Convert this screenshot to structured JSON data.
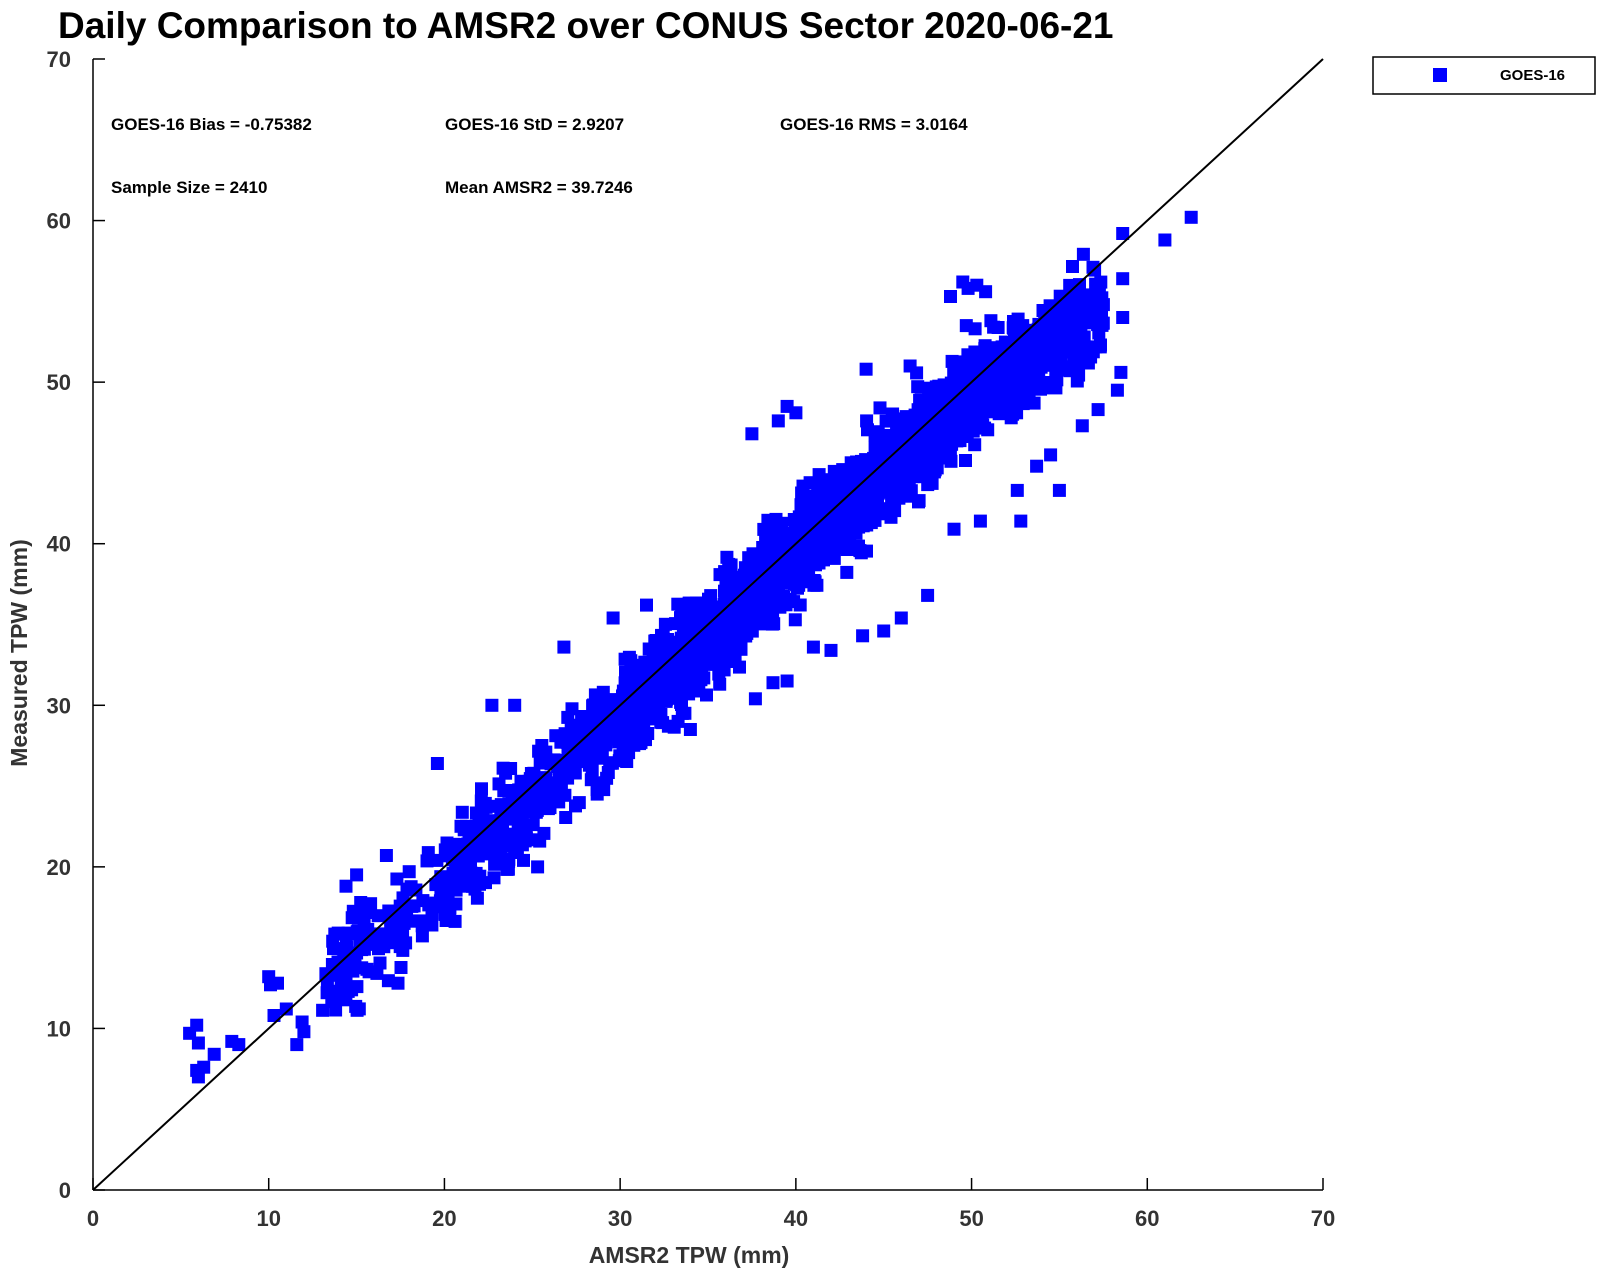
{
  "chart_data": {
    "type": "scatter",
    "title": "Daily Comparison to AMSR2 over CONUS Sector 2020-06-21",
    "xlabel": "AMSR2 TPW (mm)",
    "ylabel": "Measured TPW (mm)",
    "xlim": [
      0,
      70
    ],
    "ylim": [
      0,
      70
    ],
    "xticks": [
      "0",
      "10",
      "20",
      "30",
      "40",
      "50",
      "60",
      "70"
    ],
    "yticks": [
      "0",
      "10",
      "20",
      "30",
      "40",
      "50",
      "60",
      "70"
    ],
    "grid": false,
    "legend_position": "top-right",
    "reference_line": {
      "name": "1:1",
      "x": [
        0,
        70
      ],
      "y": [
        0,
        70
      ],
      "color": "#000000"
    },
    "series": [
      {
        "name": "GOES-16",
        "color": "#0000ff",
        "marker": "square",
        "sample_size": 2410,
        "outliers": [
          [
            5.5,
            9.7
          ],
          [
            5.9,
            10.2
          ],
          [
            6.0,
            9.1
          ],
          [
            5.9,
            7.4
          ],
          [
            6.0,
            7.0
          ],
          [
            6.3,
            7.6
          ],
          [
            6.9,
            8.4
          ],
          [
            7.9,
            9.2
          ],
          [
            8.3,
            9.0
          ],
          [
            10.0,
            13.2
          ],
          [
            10.1,
            12.7
          ],
          [
            10.5,
            12.8
          ],
          [
            11.0,
            11.2
          ],
          [
            11.9,
            10.4
          ],
          [
            12.0,
            9.8
          ],
          [
            10.3,
            10.8
          ],
          [
            11.6,
            9.0
          ],
          [
            58.6,
            59.2
          ],
          [
            58.6,
            56.4
          ],
          [
            61.0,
            58.8
          ],
          [
            62.5,
            60.2
          ],
          [
            58.6,
            54.0
          ],
          [
            49.5,
            56.2
          ],
          [
            50.3,
            56.0
          ],
          [
            48.8,
            55.3
          ],
          [
            49.8,
            55.8
          ],
          [
            50.8,
            55.6
          ],
          [
            49.7,
            53.5
          ],
          [
            51.1,
            53.8
          ],
          [
            50.2,
            53.3
          ],
          [
            44.0,
            50.8
          ],
          [
            46.5,
            51.0
          ],
          [
            39.0,
            47.6
          ],
          [
            37.5,
            46.8
          ],
          [
            39.5,
            48.5
          ],
          [
            40.0,
            48.1
          ],
          [
            50.5,
            51.8
          ],
          [
            26.8,
            33.6
          ],
          [
            29.6,
            35.4
          ],
          [
            31.5,
            36.2
          ],
          [
            24.0,
            30.0
          ],
          [
            22.7,
            30.0
          ],
          [
            19.6,
            26.4
          ],
          [
            15.0,
            19.5
          ],
          [
            14.4,
            18.8
          ],
          [
            16.7,
            20.7
          ],
          [
            33.3,
            29.0
          ],
          [
            34.0,
            28.5
          ],
          [
            25.3,
            20.0
          ],
          [
            24.5,
            20.4
          ],
          [
            37.7,
            30.4
          ],
          [
            38.7,
            31.4
          ],
          [
            39.5,
            31.5
          ],
          [
            41.0,
            33.6
          ],
          [
            42.0,
            33.4
          ],
          [
            43.8,
            34.3
          ],
          [
            45.0,
            34.6
          ],
          [
            46.0,
            35.4
          ],
          [
            47.5,
            36.8
          ],
          [
            49.0,
            40.9
          ],
          [
            50.5,
            41.4
          ],
          [
            52.8,
            41.4
          ],
          [
            52.6,
            43.3
          ],
          [
            55.0,
            43.3
          ],
          [
            53.7,
            44.8
          ],
          [
            54.5,
            45.5
          ],
          [
            56.3,
            47.3
          ],
          [
            57.2,
            48.3
          ],
          [
            57.5,
            54.8
          ],
          [
            54.8,
            53.5
          ],
          [
            58.5,
            50.6
          ],
          [
            58.3,
            49.5
          ]
        ]
      }
    ],
    "stats": [
      {
        "label": "GOES-16 Bias = -0.75382"
      },
      {
        "label": "GOES-16 StD = 2.9207"
      },
      {
        "label": "GOES-16 RMS = 3.0164"
      },
      {
        "label": "Sample Size = 2410"
      },
      {
        "label": "Mean AMSR2 = 39.7246"
      }
    ]
  }
}
